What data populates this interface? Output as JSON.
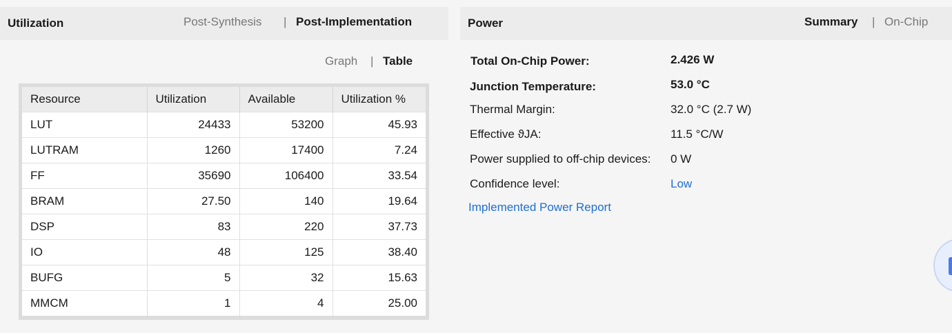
{
  "utilization": {
    "title": "Utilization",
    "tabs": [
      "Post-Synthesis",
      "Post-Implementation"
    ],
    "active_tab": "Post-Implementation",
    "view_tabs": [
      "Graph",
      "Table"
    ],
    "active_view": "Table",
    "separator": "|",
    "table": {
      "headers": [
        "Resource",
        "Utilization",
        "Available",
        "Utilization %"
      ],
      "rows": [
        [
          "LUT",
          "24433",
          "53200",
          "45.93"
        ],
        [
          "LUTRAM",
          "1260",
          "17400",
          "7.24"
        ],
        [
          "FF",
          "35690",
          "106400",
          "33.54"
        ],
        [
          "BRAM",
          "27.50",
          "140",
          "19.64"
        ],
        [
          "DSP",
          "83",
          "220",
          "37.73"
        ],
        [
          "IO",
          "48",
          "125",
          "38.40"
        ],
        [
          "BUFG",
          "5",
          "32",
          "15.63"
        ],
        [
          "MMCM",
          "1",
          "4",
          "25.00"
        ]
      ]
    }
  },
  "power": {
    "title": "Power",
    "tabs": [
      "Summary",
      "On-Chip"
    ],
    "active_tab": "Summary",
    "separator": "|",
    "rows": [
      {
        "label": "Total On-Chip Power:",
        "value": "2.426 W"
      },
      {
        "label": "Junction Temperature:",
        "value": "53.0 °C"
      },
      {
        "label": "Thermal Margin:",
        "value": "32.0 °C (2.7 W)"
      },
      {
        "label": "Effective ϑJA:",
        "value": "11.5 °C/W"
      },
      {
        "label": "Power supplied to off-chip devices:",
        "value": "0 W"
      },
      {
        "label": "Confidence level:",
        "value": "Low"
      }
    ],
    "report_link": "Implemented Power Report"
  },
  "colors": {
    "header_bg": "#ececec",
    "link": "#1f6fd0",
    "inactive_tab": "#777777"
  }
}
